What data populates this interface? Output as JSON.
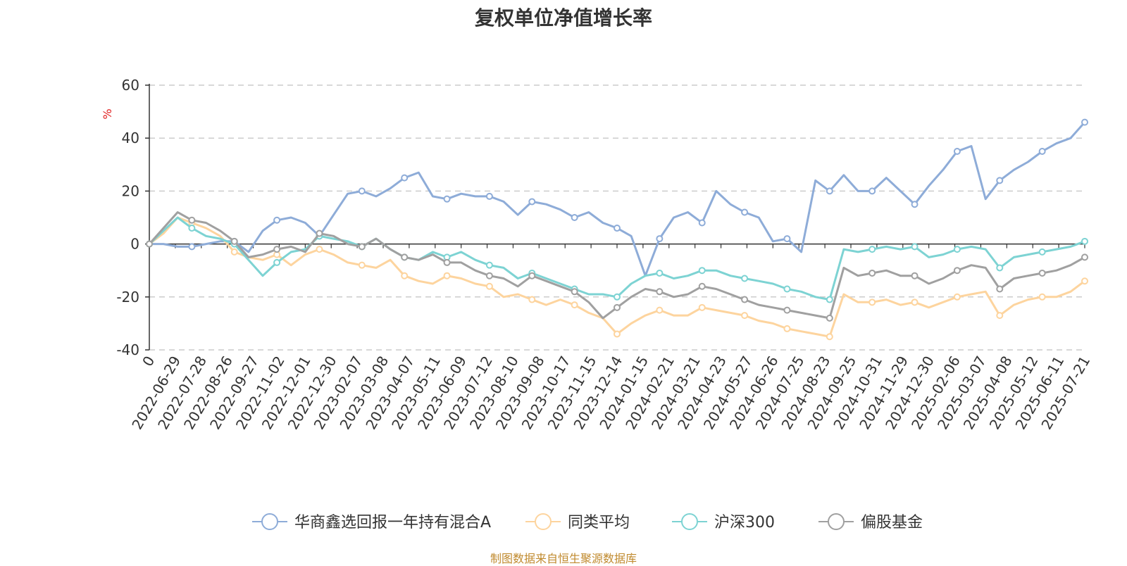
{
  "chart_data": {
    "type": "line",
    "title": "复权单位净值增长率",
    "ylabel": "%",
    "ylim": [
      -40,
      60
    ],
    "yticks": [
      -40,
      -20,
      0,
      20,
      40,
      60
    ],
    "x_ticks": [
      "0",
      "2022-06-29",
      "2022-07-28",
      "2022-08-26",
      "2022-09-27",
      "2022-11-02",
      "2022-12-01",
      "2022-12-30",
      "2023-02-07",
      "2023-03-08",
      "2023-04-07",
      "2023-05-11",
      "2023-06-09",
      "2023-07-12",
      "2023-08-10",
      "2023-09-08",
      "2023-10-17",
      "2023-11-15",
      "2023-12-14",
      "2024-01-15",
      "2024-02-21",
      "2024-03-21",
      "2024-04-23",
      "2024-05-27",
      "2024-06-26",
      "2024-07-25",
      "2024-08-23",
      "2024-09-25",
      "2024-10-31",
      "2024-11-29",
      "2024-12-30",
      "2025-02-06",
      "2025-03-07",
      "2025-04-08",
      "2025-05-12",
      "2025-06-11",
      "2025-07-21"
    ],
    "grid": "horizontal-dashed",
    "legend_position": "bottom",
    "series": [
      {
        "name": "华商鑫选回报一年持有混合A",
        "color": "#8eacd8",
        "values": [
          0,
          0,
          -1,
          -1,
          0,
          1,
          1,
          -3,
          5,
          9,
          10,
          8,
          3,
          11,
          19,
          20,
          18,
          21,
          25,
          27,
          18,
          17,
          19,
          18,
          18,
          16,
          11,
          16,
          15,
          13,
          10,
          12,
          8,
          6,
          3,
          -12,
          2,
          10,
          12,
          8,
          20,
          15,
          12,
          10,
          1,
          2,
          -3,
          24,
          20,
          26,
          20,
          20,
          25,
          20,
          15,
          22,
          28,
          35,
          37,
          17,
          24,
          28,
          31,
          35,
          38,
          40,
          46
        ]
      },
      {
        "name": "同类平均",
        "color": "#fdd49e",
        "values": [
          0,
          4,
          10,
          8,
          6,
          3,
          -3,
          -5,
          -6,
          -4,
          -8,
          -4,
          -2,
          -4,
          -7,
          -8,
          -9,
          -6,
          -12,
          -14,
          -15,
          -12,
          -13,
          -15,
          -16,
          -20,
          -19,
          -21,
          -23,
          -21,
          -23,
          -26,
          -28,
          -34,
          -30,
          -27,
          -25,
          -27,
          -27,
          -24,
          -25,
          -26,
          -27,
          -29,
          -30,
          -32,
          -33,
          -34,
          -35,
          -19,
          -22,
          -22,
          -21,
          -23,
          -22,
          -24,
          -22,
          -20,
          -19,
          -18,
          -27,
          -23,
          -21,
          -20,
          -20,
          -18,
          -14
        ]
      },
      {
        "name": "沪深300",
        "color": "#7dd3d3",
        "values": [
          0,
          5,
          10,
          6,
          3,
          2,
          0,
          -6,
          -12,
          -7,
          -3,
          -2,
          3,
          2,
          1,
          -1,
          2,
          -2,
          -5,
          -6,
          -3,
          -5,
          -3,
          -6,
          -8,
          -9,
          -13,
          -11,
          -13,
          -15,
          -17,
          -19,
          -19,
          -20,
          -15,
          -12,
          -11,
          -13,
          -12,
          -10,
          -10,
          -12,
          -13,
          -14,
          -15,
          -17,
          -18,
          -20,
          -21,
          -2,
          -3,
          -2,
          -1,
          -2,
          -1,
          -5,
          -4,
          -2,
          -1,
          -2,
          -9,
          -5,
          -4,
          -3,
          -2,
          -1,
          1
        ]
      },
      {
        "name": "偏股基金",
        "color": "#a0a0a0",
        "values": [
          0,
          6,
          12,
          9,
          8,
          5,
          1,
          -5,
          -4,
          -2,
          -1,
          -3,
          4,
          3,
          0,
          -1,
          2,
          -2,
          -5,
          -6,
          -4,
          -7,
          -7,
          -10,
          -12,
          -13,
          -16,
          -12,
          -14,
          -16,
          -18,
          -22,
          -28,
          -24,
          -20,
          -17,
          -18,
          -20,
          -19,
          -16,
          -17,
          -19,
          -21,
          -23,
          -24,
          -25,
          -26,
          -27,
          -28,
          -9,
          -12,
          -11,
          -10,
          -12,
          -12,
          -15,
          -13,
          -10,
          -8,
          -9,
          -17,
          -13,
          -12,
          -11,
          -10,
          -8,
          -5
        ]
      }
    ]
  },
  "source_note": "制图数据来自恒生聚源数据库"
}
